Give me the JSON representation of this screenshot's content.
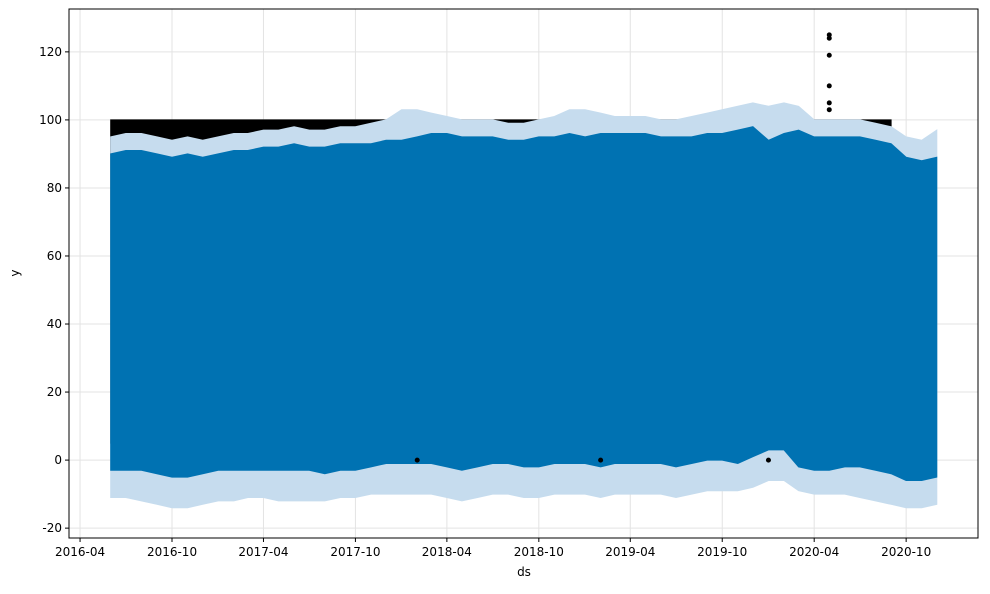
{
  "chart_data": {
    "type": "forecast",
    "xlabel": "ds",
    "ylabel": "y",
    "grid": true,
    "xlim": [
      "2016-03-10",
      "2021-02-21"
    ],
    "xticks": [
      "2016-04",
      "2016-10",
      "2017-04",
      "2017-10",
      "2018-04",
      "2018-10",
      "2019-04",
      "2019-10",
      "2020-04",
      "2020-10"
    ],
    "ylim": [
      -22.9,
      132.6
    ],
    "yticks": [
      -20,
      0,
      20,
      40,
      60,
      80,
      100,
      120
    ],
    "x": [
      "2016-06",
      "2016-07",
      "2016-08",
      "2016-09",
      "2016-10",
      "2016-11",
      "2016-12",
      "2017-01",
      "2017-02",
      "2017-03",
      "2017-04",
      "2017-05",
      "2017-06",
      "2017-07",
      "2017-08",
      "2017-09",
      "2017-10",
      "2017-11",
      "2017-12",
      "2018-01",
      "2018-02",
      "2018-03",
      "2018-04",
      "2018-05",
      "2018-06",
      "2018-07",
      "2018-08",
      "2018-09",
      "2018-10",
      "2018-11",
      "2018-12",
      "2019-01",
      "2019-02",
      "2019-03",
      "2019-04",
      "2019-05",
      "2019-06",
      "2019-07",
      "2019-08",
      "2019-09",
      "2019-10",
      "2019-11",
      "2019-12",
      "2020-01",
      "2020-02",
      "2020-03",
      "2020-04",
      "2020-05",
      "2020-06",
      "2020-07",
      "2020-08",
      "2020-09",
      "2020-10",
      "2020-11",
      "2020-12"
    ],
    "observed": {
      "color": "#000000",
      "max": [
        100,
        100,
        100,
        100,
        100,
        100,
        100,
        100,
        100,
        100,
        100,
        100,
        100,
        100,
        100,
        100,
        100,
        100,
        100,
        100,
        100,
        100,
        100,
        100,
        100,
        100,
        100,
        100,
        100,
        100,
        100,
        100,
        100,
        100,
        100,
        100,
        100,
        100,
        100,
        100,
        100,
        100,
        100,
        100,
        100,
        100,
        100,
        100,
        100,
        100,
        100,
        100,
        null,
        null,
        null
      ],
      "min": [
        5,
        5,
        5,
        5,
        5,
        5,
        5,
        5,
        5,
        5,
        5,
        5,
        5,
        5,
        5,
        5,
        5,
        5,
        5,
        5,
        5,
        5,
        5,
        5,
        5,
        5,
        5,
        5,
        5,
        5,
        5,
        5,
        5,
        5,
        5,
        5,
        5,
        5,
        5,
        5,
        5,
        5,
        5,
        8,
        8,
        8,
        5,
        5,
        5,
        5,
        5,
        5,
        null,
        null,
        null
      ]
    },
    "band": {
      "color": "#c6dcee",
      "upper": [
        95,
        96,
        96,
        95,
        94,
        95,
        94,
        95,
        96,
        96,
        97,
        97,
        98,
        97,
        97,
        98,
        98,
        99,
        100,
        103,
        103,
        102,
        101,
        100,
        100,
        100,
        99,
        99,
        100,
        101,
        103,
        103,
        102,
        101,
        101,
        101,
        100,
        100,
        101,
        102,
        103,
        104,
        105,
        104,
        105,
        104,
        100,
        100,
        100,
        100,
        99,
        98,
        95,
        94,
        97
      ],
      "lower": [
        -11,
        -11,
        -12,
        -13,
        -14,
        -14,
        -13,
        -12,
        -12,
        -11,
        -11,
        -12,
        -12,
        -12,
        -12,
        -11,
        -11,
        -10,
        -10,
        -10,
        -10,
        -10,
        -11,
        -12,
        -11,
        -10,
        -10,
        -11,
        -11,
        -10,
        -10,
        -10,
        -11,
        -10,
        -10,
        -10,
        -10,
        -11,
        -10,
        -9,
        -9,
        -9,
        -8,
        -6,
        -6,
        -9,
        -10,
        -10,
        -10,
        -11,
        -12,
        -13,
        -14,
        -14,
        -13
      ]
    },
    "forecast": {
      "color": "#0072b2",
      "upper": [
        90,
        91,
        91,
        90,
        89,
        90,
        89,
        90,
        91,
        91,
        92,
        92,
        93,
        92,
        92,
        93,
        93,
        93,
        94,
        94,
        95,
        96,
        96,
        95,
        95,
        95,
        94,
        94,
        95,
        95,
        96,
        95,
        96,
        96,
        96,
        96,
        95,
        95,
        95,
        96,
        96,
        97,
        98,
        94,
        96,
        97,
        95,
        95,
        95,
        95,
        94,
        93,
        89,
        88,
        89
      ],
      "lower": [
        -3,
        -3,
        -3,
        -4,
        -5,
        -5,
        -4,
        -3,
        -3,
        -3,
        -3,
        -3,
        -3,
        -3,
        -4,
        -3,
        -3,
        -2,
        -1,
        -1,
        -1,
        -1,
        -2,
        -3,
        -2,
        -1,
        -1,
        -2,
        -2,
        -1,
        -1,
        -1,
        -2,
        -1,
        -1,
        -1,
        -1,
        -2,
        -1,
        0,
        0,
        -1,
        1,
        3,
        3,
        -2,
        -3,
        -3,
        -2,
        -2,
        -3,
        -4,
        -6,
        -6,
        -5
      ]
    },
    "points": {
      "color": "#000000",
      "x": [
        "2020-05",
        "2020-05",
        "2020-05",
        "2020-05",
        "2020-05",
        "2020-05",
        "2018-02",
        "2019-02",
        "2020-01"
      ],
      "values": [
        125,
        124,
        119,
        110,
        105,
        103,
        0,
        0,
        0
      ]
    }
  }
}
